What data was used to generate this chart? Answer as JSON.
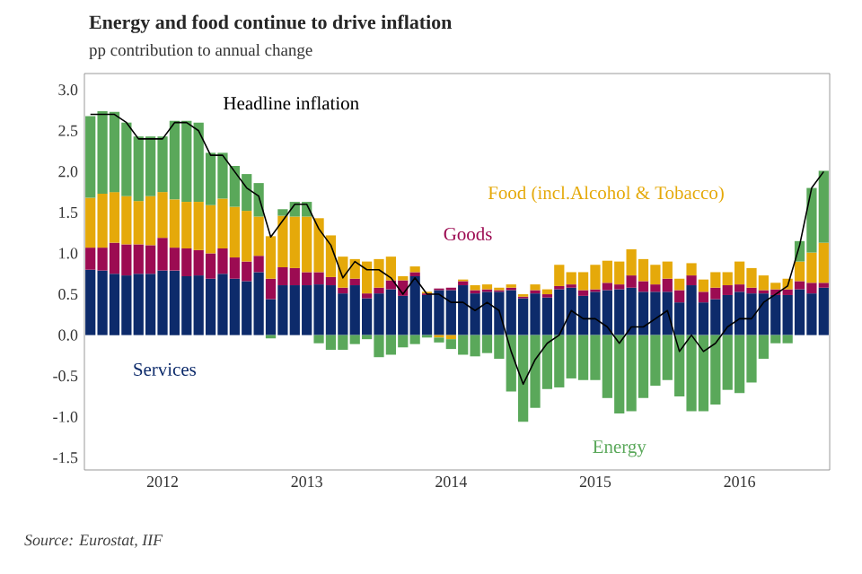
{
  "chart_data": {
    "type": "bar",
    "stacked": true,
    "title": "Energy and food continue to drive inflation",
    "subtitle": "pp contribution to annual change",
    "annotations": [
      "Source: Eurostat, IIF"
    ],
    "categories": [
      null,
      null,
      null,
      null,
      null,
      null,
      "2012",
      null,
      null,
      null,
      null,
      null,
      null,
      null,
      null,
      null,
      null,
      null,
      "2013",
      null,
      null,
      null,
      null,
      null,
      null,
      null,
      null,
      null,
      null,
      null,
      "2014",
      null,
      null,
      null,
      null,
      null,
      null,
      null,
      null,
      null,
      null,
      null,
      "2015",
      null,
      null,
      null,
      null,
      null,
      null,
      null,
      null,
      null,
      null,
      null,
      "2016",
      null,
      null,
      null,
      null,
      null,
      null,
      null
    ],
    "ylim": [
      -1.65,
      3.2
    ],
    "yticks": [
      {
        "value": -1.5,
        "label": "-1.5"
      },
      {
        "value": -1,
        "label": "-1.0"
      },
      {
        "value": -0.5,
        "label": "-0.5"
      },
      {
        "value": 0,
        "label": "0.0"
      },
      {
        "value": 0.5,
        "label": "0.5"
      },
      {
        "value": 1,
        "label": "1.0"
      },
      {
        "value": 1.5,
        "label": "1.5"
      },
      {
        "value": 2,
        "label": "2.0"
      },
      {
        "value": 2.5,
        "label": "2.5"
      },
      {
        "value": 3,
        "label": "3.0"
      }
    ],
    "series": [
      {
        "name": "Services",
        "color": "#0d2b6b",
        "values": [
          0.8,
          0.79,
          0.75,
          0.73,
          0.75,
          0.75,
          0.79,
          0.79,
          0.72,
          0.73,
          0.69,
          0.75,
          0.69,
          0.66,
          0.77,
          0.44,
          0.61,
          0.61,
          0.61,
          0.62,
          0.61,
          0.51,
          0.61,
          0.45,
          0.51,
          0.56,
          0.48,
          0.72,
          0.49,
          0.55,
          0.55,
          0.61,
          0.51,
          0.53,
          0.53,
          0.55,
          0.45,
          0.51,
          0.46,
          0.56,
          0.58,
          0.48,
          0.53,
          0.55,
          0.56,
          0.58,
          0.53,
          0.53,
          0.53,
          0.4,
          0.61,
          0.4,
          0.44,
          0.49,
          0.53,
          0.51,
          0.51,
          0.49,
          0.49,
          0.56,
          0.51,
          0.58
        ]
      },
      {
        "name": "Goods",
        "color": "#9c0b52",
        "values": [
          0.27,
          0.28,
          0.38,
          0.38,
          0.36,
          0.35,
          0.4,
          0.28,
          0.34,
          0.31,
          0.31,
          0.31,
          0.26,
          0.24,
          0.2,
          0.25,
          0.22,
          0.21,
          0.16,
          0.15,
          0.1,
          0.07,
          0.08,
          0.06,
          0.07,
          0.11,
          0.19,
          0.05,
          0.02,
          0.02,
          0.03,
          0.05,
          0.04,
          0.03,
          0.02,
          0.03,
          0.02,
          0.04,
          0.04,
          0.04,
          0.04,
          0.07,
          0.03,
          0.09,
          0.06,
          0.15,
          0.13,
          0.09,
          0.16,
          0.15,
          0.12,
          0.13,
          0.14,
          0.12,
          0.09,
          0.07,
          0.04,
          0.07,
          0.07,
          0.1,
          0.13,
          0.06
        ]
      },
      {
        "name": "Food (incl.Alcohol & Tobacco)",
        "color": "#e5a90a",
        "values": [
          0.61,
          0.66,
          0.62,
          0.59,
          0.53,
          0.6,
          0.56,
          0.59,
          0.57,
          0.59,
          0.59,
          0.61,
          0.62,
          0.62,
          0.48,
          0.52,
          0.63,
          0.63,
          0.68,
          0.66,
          0.51,
          0.38,
          0.24,
          0.39,
          0.35,
          0.29,
          0.05,
          0.07,
          0.02,
          -0.03,
          -0.05,
          0.02,
          0.06,
          0.06,
          0.03,
          0.04,
          0.03,
          0.07,
          0.06,
          0.26,
          0.15,
          0.22,
          0.3,
          0.27,
          0.28,
          0.32,
          0.27,
          0.24,
          0.21,
          0.14,
          0.15,
          0.15,
          0.19,
          0.16,
          0.28,
          0.24,
          0.18,
          0.08,
          0.13,
          0.24,
          0.37,
          0.49
        ]
      },
      {
        "name": "Energy",
        "color": "#5aa85a",
        "values": [
          1.0,
          1.01,
          0.98,
          0.9,
          0.79,
          0.73,
          0.68,
          0.96,
          0.99,
          0.97,
          0.64,
          0.56,
          0.5,
          0.45,
          0.41,
          -0.04,
          0.08,
          0.18,
          0.18,
          -0.1,
          -0.18,
          -0.18,
          -0.11,
          -0.05,
          -0.27,
          -0.24,
          -0.15,
          -0.11,
          -0.03,
          -0.06,
          -0.12,
          -0.24,
          -0.26,
          -0.22,
          -0.29,
          -0.69,
          -1.06,
          -0.89,
          -0.66,
          -0.64,
          -0.53,
          -0.55,
          -0.55,
          -0.77,
          -0.96,
          -0.93,
          -0.77,
          -0.62,
          -0.55,
          -0.75,
          -0.93,
          -0.93,
          -0.85,
          -0.67,
          -0.71,
          -0.58,
          -0.29,
          -0.1,
          -0.1,
          0.25,
          0.79,
          0.88
        ]
      },
      {
        "name": "Headline inflation",
        "type": "line",
        "color": "#000000",
        "values": [
          2.7,
          2.7,
          2.7,
          2.6,
          2.4,
          2.4,
          2.4,
          2.6,
          2.6,
          2.5,
          2.2,
          2.2,
          2.0,
          1.8,
          1.7,
          1.2,
          1.4,
          1.6,
          1.6,
          1.3,
          1.1,
          0.7,
          0.9,
          0.8,
          0.8,
          0.7,
          0.5,
          0.7,
          0.5,
          0.5,
          0.4,
          0.4,
          0.3,
          0.4,
          0.3,
          -0.2,
          -0.6,
          -0.3,
          -0.1,
          0.0,
          0.3,
          0.2,
          0.2,
          0.1,
          -0.1,
          0.1,
          0.1,
          0.2,
          0.3,
          -0.2,
          0.0,
          -0.2,
          -0.1,
          0.1,
          0.2,
          0.2,
          0.4,
          0.5,
          0.6,
          1.1,
          1.8,
          2.0
        ]
      }
    ]
  }
}
